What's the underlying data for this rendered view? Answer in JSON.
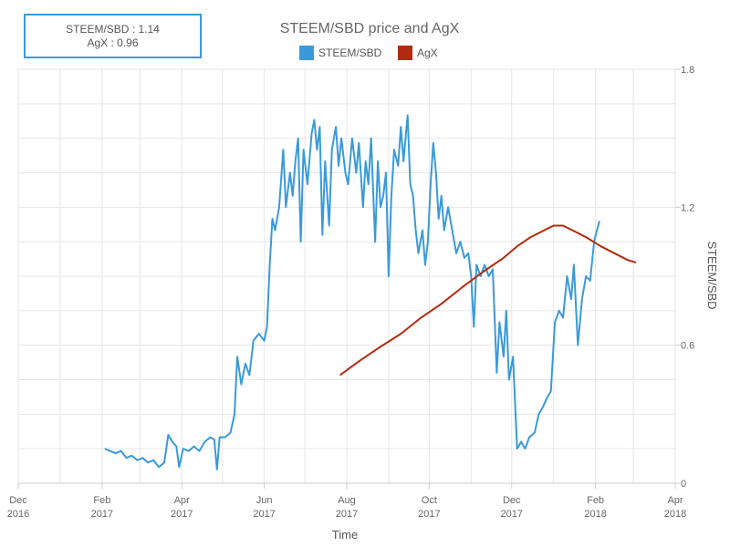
{
  "tooltip": {
    "line1_label": "STEEM/SBD",
    "line1_value": "1.14",
    "line2_label": "AgX",
    "line2_value": "0.96"
  },
  "chart_data": {
    "type": "line",
    "title": "STEEM/SBD price and AgX",
    "xlabel": "Time",
    "ylabel": "STEEM/SBD",
    "ylim": [
      0,
      1.8
    ],
    "y_ticks": [
      "0",
      "0.6",
      "1.2",
      "1.8"
    ],
    "y_tick_values": [
      0,
      0.6,
      1.2,
      1.8
    ],
    "y_axis_side": "right",
    "grid": true,
    "legend_position": "top",
    "x_ticks": [
      {
        "date": "2016-12-01",
        "line1": "Dec",
        "line2": "2016"
      },
      {
        "date": "2017-02-01",
        "line1": "Feb",
        "line2": "2017"
      },
      {
        "date": "2017-04-01",
        "line1": "Apr",
        "line2": "2017"
      },
      {
        "date": "2017-06-01",
        "line1": "Jun",
        "line2": "2017"
      },
      {
        "date": "2017-08-01",
        "line1": "Aug",
        "line2": "2017"
      },
      {
        "date": "2017-10-01",
        "line1": "Oct",
        "line2": "2017"
      },
      {
        "date": "2017-12-01",
        "line1": "Dec",
        "line2": "2017"
      },
      {
        "date": "2018-02-01",
        "line1": "Feb",
        "line2": "2018"
      },
      {
        "date": "2018-04-01",
        "line1": "Apr",
        "line2": "2018"
      }
    ],
    "x_range": [
      "2016-12-01",
      "2018-04-01"
    ],
    "series": [
      {
        "name": "STEEM/SBD",
        "color": "#3a9ad9",
        "points": [
          [
            "2017-02-03",
            0.15
          ],
          [
            "2017-02-07",
            0.14
          ],
          [
            "2017-02-11",
            0.13
          ],
          [
            "2017-02-15",
            0.14
          ],
          [
            "2017-02-19",
            0.11
          ],
          [
            "2017-02-23",
            0.12
          ],
          [
            "2017-02-27",
            0.1
          ],
          [
            "2017-03-03",
            0.11
          ],
          [
            "2017-03-07",
            0.09
          ],
          [
            "2017-03-11",
            0.1
          ],
          [
            "2017-03-15",
            0.07
          ],
          [
            "2017-03-19",
            0.09
          ],
          [
            "2017-03-22",
            0.21
          ],
          [
            "2017-03-25",
            0.18
          ],
          [
            "2017-03-28",
            0.16
          ],
          [
            "2017-03-30",
            0.07
          ],
          [
            "2017-04-02",
            0.15
          ],
          [
            "2017-04-06",
            0.14
          ],
          [
            "2017-04-10",
            0.16
          ],
          [
            "2017-04-14",
            0.14
          ],
          [
            "2017-04-18",
            0.18
          ],
          [
            "2017-04-22",
            0.2
          ],
          [
            "2017-04-25",
            0.19
          ],
          [
            "2017-04-27",
            0.06
          ],
          [
            "2017-04-29",
            0.2
          ],
          [
            "2017-05-03",
            0.2
          ],
          [
            "2017-05-07",
            0.22
          ],
          [
            "2017-05-10",
            0.3
          ],
          [
            "2017-05-12",
            0.55
          ],
          [
            "2017-05-15",
            0.43
          ],
          [
            "2017-05-18",
            0.52
          ],
          [
            "2017-05-21",
            0.47
          ],
          [
            "2017-05-24",
            0.62
          ],
          [
            "2017-05-28",
            0.65
          ],
          [
            "2017-06-01",
            0.62
          ],
          [
            "2017-06-03",
            0.68
          ],
          [
            "2017-06-05",
            0.95
          ],
          [
            "2017-06-07",
            1.15
          ],
          [
            "2017-06-09",
            1.1
          ],
          [
            "2017-06-12",
            1.2
          ],
          [
            "2017-06-15",
            1.45
          ],
          [
            "2017-06-17",
            1.2
          ],
          [
            "2017-06-20",
            1.35
          ],
          [
            "2017-06-22",
            1.25
          ],
          [
            "2017-06-24",
            1.4
          ],
          [
            "2017-06-26",
            1.5
          ],
          [
            "2017-06-28",
            1.05
          ],
          [
            "2017-06-30",
            1.45
          ],
          [
            "2017-07-03",
            1.3
          ],
          [
            "2017-07-06",
            1.52
          ],
          [
            "2017-07-08",
            1.58
          ],
          [
            "2017-07-10",
            1.45
          ],
          [
            "2017-07-12",
            1.55
          ],
          [
            "2017-07-14",
            1.08
          ],
          [
            "2017-07-16",
            1.4
          ],
          [
            "2017-07-19",
            1.12
          ],
          [
            "2017-07-21",
            1.45
          ],
          [
            "2017-07-24",
            1.55
          ],
          [
            "2017-07-26",
            1.38
          ],
          [
            "2017-07-28",
            1.5
          ],
          [
            "2017-07-31",
            1.35
          ],
          [
            "2017-08-02",
            1.3
          ],
          [
            "2017-08-05",
            1.5
          ],
          [
            "2017-08-08",
            1.35
          ],
          [
            "2017-08-10",
            1.48
          ],
          [
            "2017-08-13",
            1.2
          ],
          [
            "2017-08-15",
            1.4
          ],
          [
            "2017-08-17",
            1.3
          ],
          [
            "2017-08-19",
            1.5
          ],
          [
            "2017-08-22",
            1.05
          ],
          [
            "2017-08-24",
            1.4
          ],
          [
            "2017-08-26",
            1.2
          ],
          [
            "2017-08-28",
            1.25
          ],
          [
            "2017-08-30",
            1.35
          ],
          [
            "2017-09-01",
            0.9
          ],
          [
            "2017-09-03",
            1.25
          ],
          [
            "2017-09-05",
            1.45
          ],
          [
            "2017-09-08",
            1.38
          ],
          [
            "2017-09-10",
            1.55
          ],
          [
            "2017-09-12",
            1.4
          ],
          [
            "2017-09-15",
            1.6
          ],
          [
            "2017-09-17",
            1.3
          ],
          [
            "2017-09-19",
            1.25
          ],
          [
            "2017-09-21",
            1.1
          ],
          [
            "2017-09-23",
            1.0
          ],
          [
            "2017-09-26",
            1.1
          ],
          [
            "2017-09-28",
            0.95
          ],
          [
            "2017-09-30",
            1.05
          ],
          [
            "2017-10-02",
            1.3
          ],
          [
            "2017-10-04",
            1.48
          ],
          [
            "2017-10-06",
            1.35
          ],
          [
            "2017-10-08",
            1.15
          ],
          [
            "2017-10-10",
            1.25
          ],
          [
            "2017-10-12",
            1.1
          ],
          [
            "2017-10-15",
            1.2
          ],
          [
            "2017-10-18",
            1.1
          ],
          [
            "2017-10-21",
            1.0
          ],
          [
            "2017-10-24",
            1.05
          ],
          [
            "2017-10-27",
            0.98
          ],
          [
            "2017-10-30",
            1.0
          ],
          [
            "2017-11-01",
            0.9
          ],
          [
            "2017-11-03",
            0.68
          ],
          [
            "2017-11-05",
            0.95
          ],
          [
            "2017-11-08",
            0.9
          ],
          [
            "2017-11-11",
            0.95
          ],
          [
            "2017-11-14",
            0.9
          ],
          [
            "2017-11-17",
            0.93
          ],
          [
            "2017-11-20",
            0.48
          ],
          [
            "2017-11-22",
            0.7
          ],
          [
            "2017-11-25",
            0.55
          ],
          [
            "2017-11-27",
            0.75
          ],
          [
            "2017-11-29",
            0.45
          ],
          [
            "2017-12-02",
            0.55
          ],
          [
            "2017-12-05",
            0.15
          ],
          [
            "2017-12-08",
            0.18
          ],
          [
            "2017-12-11",
            0.15
          ],
          [
            "2017-12-14",
            0.2
          ],
          [
            "2017-12-18",
            0.22
          ],
          [
            "2017-12-21",
            0.3
          ],
          [
            "2017-12-24",
            0.33
          ],
          [
            "2017-12-27",
            0.37
          ],
          [
            "2017-12-30",
            0.4
          ],
          [
            "2018-01-02",
            0.7
          ],
          [
            "2018-01-05",
            0.75
          ],
          [
            "2018-01-08",
            0.72
          ],
          [
            "2018-01-11",
            0.9
          ],
          [
            "2018-01-14",
            0.8
          ],
          [
            "2018-01-16",
            0.95
          ],
          [
            "2018-01-19",
            0.6
          ],
          [
            "2018-01-22",
            0.8
          ],
          [
            "2018-01-25",
            0.9
          ],
          [
            "2018-01-28",
            0.88
          ],
          [
            "2018-01-31",
            1.05
          ],
          [
            "2018-02-02",
            1.1
          ],
          [
            "2018-02-04",
            1.14
          ]
        ]
      },
      {
        "name": "AgX",
        "color": "#b22a10",
        "points": [
          [
            "2017-07-27",
            0.47
          ],
          [
            "2017-08-10",
            0.53
          ],
          [
            "2017-08-25",
            0.59
          ],
          [
            "2017-09-10",
            0.65
          ],
          [
            "2017-09-25",
            0.72
          ],
          [
            "2017-10-10",
            0.78
          ],
          [
            "2017-10-25",
            0.85
          ],
          [
            "2017-11-10",
            0.92
          ],
          [
            "2017-11-25",
            0.98
          ],
          [
            "2017-12-05",
            1.03
          ],
          [
            "2017-12-15",
            1.07
          ],
          [
            "2017-12-25",
            1.1
          ],
          [
            "2018-01-01",
            1.12
          ],
          [
            "2018-01-08",
            1.12
          ],
          [
            "2018-01-15",
            1.1
          ],
          [
            "2018-01-25",
            1.07
          ],
          [
            "2018-02-05",
            1.03
          ],
          [
            "2018-02-15",
            1.0
          ],
          [
            "2018-02-25",
            0.97
          ],
          [
            "2018-03-03",
            0.96
          ]
        ]
      }
    ]
  }
}
